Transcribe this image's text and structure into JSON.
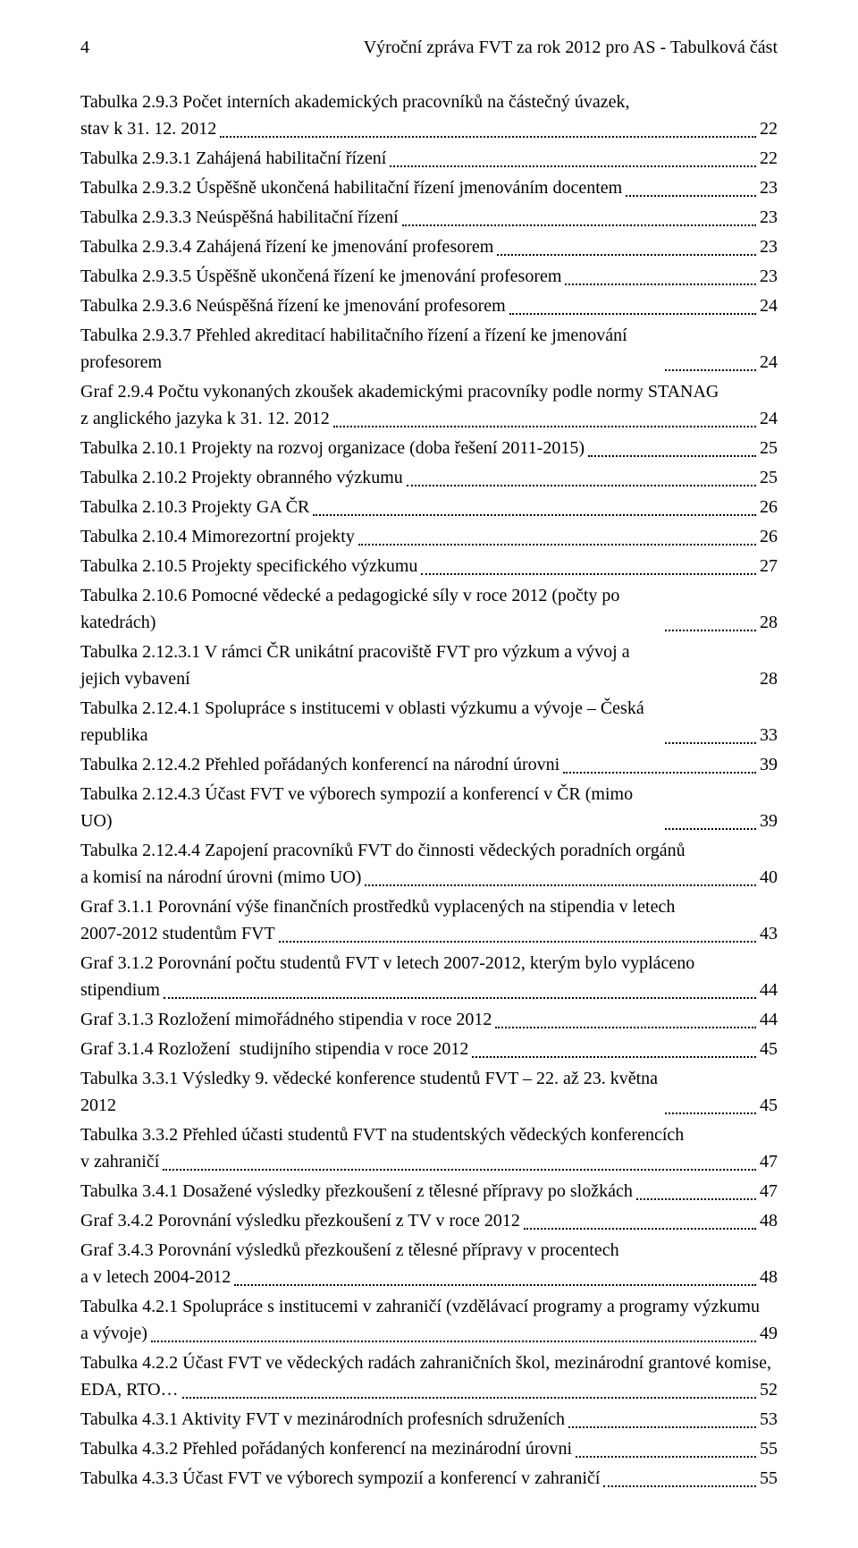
{
  "page_header": {
    "page_number": "4",
    "title": "Výroční zpráva FVT za rok 2012 pro AS - Tabulková část"
  },
  "toc": [
    {
      "label": "Tabulka 2.9.3 Počet interních akademických pracovníků na částečný úvazek,\nstav k 31. 12. 2012",
      "page": "22",
      "multiline": true
    },
    {
      "label": "Tabulka 2.9.3.1 Zahájená habilitační řízení",
      "page": "22"
    },
    {
      "label": "Tabulka 2.9.3.2 Úspěšně ukončená habilitační řízení jmenováním docentem",
      "page": "23"
    },
    {
      "label": "Tabulka 2.9.3.3 Neúspěšná habilitační řízení",
      "page": "23"
    },
    {
      "label": "Tabulka 2.9.3.4 Zahájená řízení ke jmenování profesorem",
      "page": "23"
    },
    {
      "label": "Tabulka 2.9.3.5 Úspěšně ukončená řízení ke jmenování profesorem",
      "page": "23"
    },
    {
      "label": "Tabulka 2.9.3.6 Neúspěšná řízení ke jmenování profesorem",
      "page": "24"
    },
    {
      "label": "Tabulka 2.9.3.7 Přehled akreditací habilitačního řízení a řízení ke jmenování profesorem",
      "page": "24"
    },
    {
      "label": "Graf 2.9.4 Počtu vykonaných zkoušek akademickými pracovníky podle normy STANAG\nz anglického jazyka k 31. 12. 2012",
      "page": "24",
      "multiline": true
    },
    {
      "label": "Tabulka 2.10.1 Projekty na rozvoj organizace (doba řešení 2011-2015)",
      "page": "25"
    },
    {
      "label": "Tabulka 2.10.2 Projekty obranného výzkumu",
      "page": "25"
    },
    {
      "label": "Tabulka 2.10.3 Projekty GA ČR",
      "page": "26"
    },
    {
      "label": "Tabulka 2.10.4 Mimorezortní projekty",
      "page": "26"
    },
    {
      "label": "Tabulka 2.10.5 Projekty specifického výzkumu",
      "page": "27"
    },
    {
      "label": "Tabulka 2.10.6 Pomocné vědecké a pedagogické síly v roce 2012 (počty po katedrách)",
      "page": "28"
    },
    {
      "label": "Tabulka 2.12.3.1 V rámci ČR unikátní pracoviště FVT pro výzkum a vývoj a jejich vybavení",
      "page": "28",
      "noleader": true
    },
    {
      "label": "Tabulka 2.12.4.1 Spolupráce s institucemi v oblasti výzkumu a vývoje – Česká republika",
      "page": "33"
    },
    {
      "label": "Tabulka 2.12.4.2 Přehled pořádaných konferencí na národní úrovni",
      "page": "39"
    },
    {
      "label": "Tabulka 2.12.4.3 Účast FVT ve výborech sympozií a konferencí v ČR (mimo UO)",
      "page": "39"
    },
    {
      "label": "Tabulka 2.12.4.4 Zapojení pracovníků FVT do činnosti vědeckých poradních orgánů\na komisí na národní úrovni (mimo UO)",
      "page": "40",
      "multiline": true
    },
    {
      "label": "Graf 3.1.1 Porovnání výše finančních prostředků vyplacených na stipendia v letech\n2007-2012 studentům FVT",
      "page": "43",
      "multiline": true
    },
    {
      "label": "Graf 3.1.2 Porovnání počtu studentů  FVT v letech 2007-2012, kterým bylo vypláceno\nstipendium",
      "page": "44",
      "multiline": true
    },
    {
      "label": "Graf 3.1.3 Rozložení mimořádného stipendia v roce 2012",
      "page": "44"
    },
    {
      "label": "Graf 3.1.4 Rozložení  studijního stipendia v roce 2012",
      "page": "45"
    },
    {
      "label": "Tabulka 3.3.1 Výsledky 9. vědecké konference studentů FVT – 22. až 23. května 2012",
      "page": "45"
    },
    {
      "label": "Tabulka 3.3.2 Přehled účasti studentů FVT na studentských vědeckých konferencích\nv zahraničí",
      "page": "47",
      "multiline": true
    },
    {
      "label": "Tabulka 3.4.1 Dosažené výsledky přezkoušení z tělesné přípravy po složkách",
      "page": "47"
    },
    {
      "label": "Graf 3.4.2 Porovnání výsledku přezkoušení z TV v roce 2012",
      "page": "48"
    },
    {
      "label": "Graf 3.4.3 Porovnání výsledků přezkoušení z tělesné přípravy v procentech\na v letech 2004-2012",
      "page": "48",
      "multiline": true
    },
    {
      "label": "Tabulka 4.2.1 Spolupráce s institucemi v zahraničí (vzdělávací programy a programy výzkumu\na vývoje)",
      "page": "49",
      "multiline": true
    },
    {
      "label": "Tabulka 4.2.2 Účast FVT ve vědeckých radách zahraničních škol, mezinárodní grantové komise,\nEDA, RTO…",
      "page": "52",
      "multiline": true
    },
    {
      "label": "Tabulka 4.3.1 Aktivity FVT v mezinárodních profesních sdruženích",
      "page": "53"
    },
    {
      "label": "Tabulka 4.3.2 Přehled pořádaných konferencí na mezinárodní úrovni",
      "page": "55"
    },
    {
      "label": "Tabulka 4.3.3 Účast FVT ve výborech sympozií a konferencí v zahraničí",
      "page": "55"
    }
  ]
}
